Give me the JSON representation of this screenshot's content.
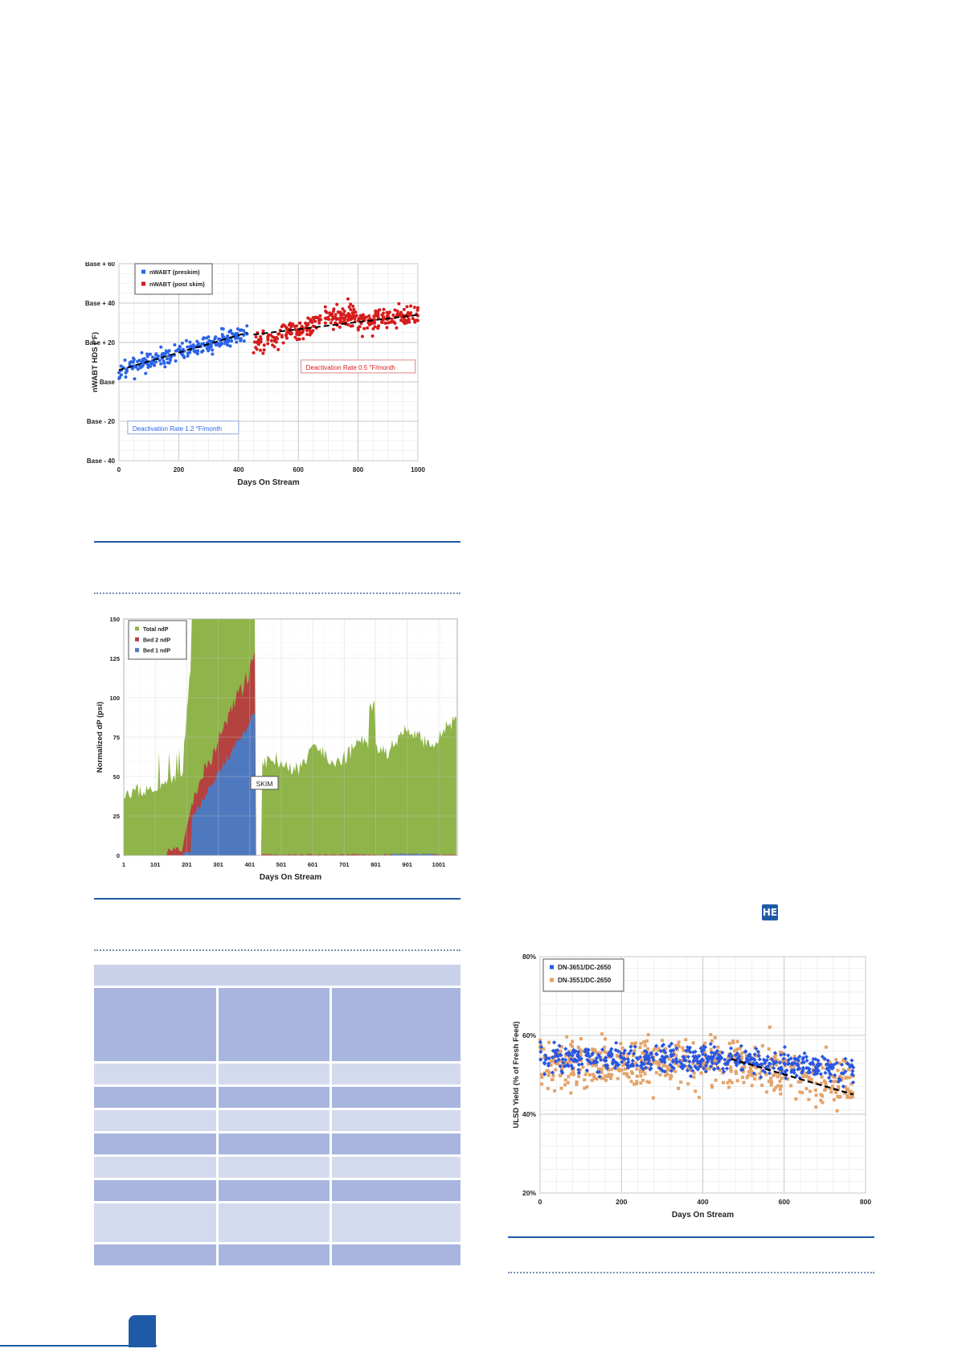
{
  "charts": {
    "c1": {
      "type": "scatter",
      "ylabel": "nWABT HDS (°F)",
      "xlabel": "Days On Stream",
      "xlim": [
        0,
        1000
      ],
      "ylim": [
        -40,
        60
      ],
      "xticks": [
        0,
        200,
        400,
        600,
        800,
        1000
      ],
      "yticks": [
        {
          "v": 60,
          "label": "Base + 60"
        },
        {
          "v": 40,
          "label": "Base + 40"
        },
        {
          "v": 20,
          "label": "Base + 20"
        },
        {
          "v": 0,
          "label": "Base"
        },
        {
          "v": -20,
          "label": "Base - 20"
        },
        {
          "v": -40,
          "label": "Base - 40"
        }
      ],
      "grid": true,
      "legend": "top-left",
      "series": [
        {
          "name": "nWABT (preskim)",
          "color": "#2a63e8",
          "x_range": [
            0,
            430
          ],
          "trend": [
            [
              0,
              6
            ],
            [
              430,
              25
            ]
          ]
        },
        {
          "name": "nWABT (post skim)",
          "color": "#d61c1c",
          "x_range": [
            450,
            1000
          ],
          "trend": [
            [
              450,
              24
            ],
            [
              1000,
              34
            ]
          ]
        }
      ],
      "annotations": [
        {
          "text": "Deactivation Rate 0.5 °F/month",
          "color": "#d61c1c",
          "x": 620,
          "y": 7
        },
        {
          "text": "Deactivation Rate 1.2 °F/month",
          "color": "#2a63e8",
          "x": 40,
          "y": -24
        }
      ]
    },
    "c2": {
      "type": "area",
      "ylabel": "Normalized dP (psi)",
      "xlabel": "Days On Stream",
      "xlim": [
        1,
        1060
      ],
      "ylim": [
        0,
        150
      ],
      "xticks": [
        {
          "v": 1,
          "label": "1"
        },
        {
          "v": 101,
          "label": "101"
        },
        {
          "v": 201,
          "label": "201"
        },
        {
          "v": 301,
          "label": "301"
        },
        {
          "v": 401,
          "label": "401"
        },
        {
          "v": 501,
          "label": "501"
        },
        {
          "v": 601,
          "label": "601"
        },
        {
          "v": 701,
          "label": "701"
        },
        {
          "v": 801,
          "label": "801"
        },
        {
          "v": 901,
          "label": "901"
        },
        {
          "v": 1001,
          "label": "1001"
        }
      ],
      "yticks": [
        0,
        25,
        50,
        75,
        100,
        125,
        150
      ],
      "grid": true,
      "legend": "top-left",
      "series": [
        {
          "name": "Total ndP",
          "color": "#8fb44a"
        },
        {
          "name": "Bed 2 ndP",
          "color": "#b4423f"
        },
        {
          "name": "Bed 1 ndP",
          "color": "#4f79bf"
        }
      ],
      "annotations": [
        {
          "text": "SKIM",
          "x": 440,
          "y": 45
        }
      ]
    },
    "c3": {
      "type": "scatter",
      "ylabel": "ULSD Yield (% of Fresh Feed)",
      "xlabel": "Days On Stream",
      "xlim": [
        0,
        800
      ],
      "ylim": [
        20,
        80
      ],
      "xticks": [
        0,
        200,
        400,
        600,
        800
      ],
      "yticks": [
        {
          "v": 80,
          "label": "80%"
        },
        {
          "v": 60,
          "label": "60%"
        },
        {
          "v": 40,
          "label": "40%"
        },
        {
          "v": 20,
          "label": "20%"
        }
      ],
      "grid": true,
      "legend": "top-left",
      "series": [
        {
          "name": "DN-3651/DC-2650",
          "color": "#2a57e0",
          "x_range": [
            0,
            770
          ]
        },
        {
          "name": "DN-3551/DC-2650",
          "color": "#e3a36b",
          "x_range": [
            0,
            770
          ]
        }
      ],
      "trend": [
        [
          470,
          54
        ],
        [
          770,
          45
        ]
      ]
    }
  },
  "logo": {
    "text": "HE"
  }
}
